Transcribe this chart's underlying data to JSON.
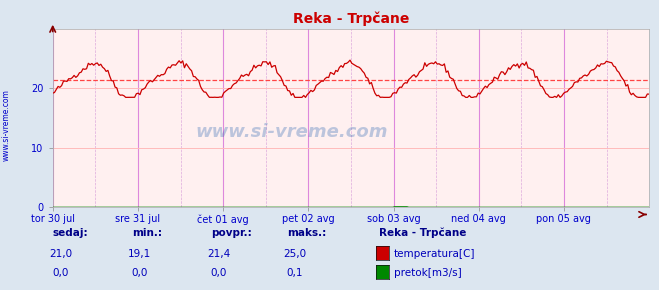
{
  "title": "Reka - Trpčane",
  "fig_bg_color": "#dce6f0",
  "plot_bg_color": "#fff0f0",
  "grid_h_color": "#ffbbbb",
  "grid_v_major_color": "#dd88dd",
  "grid_v_minor_color": "#ddaadd",
  "avg_line_color": "#ff4444",
  "avg_value": 21.4,
  "temp_line_color": "#cc0000",
  "flow_line_color": "#008800",
  "ylim": [
    0,
    30
  ],
  "yticks": [
    0,
    10,
    20
  ],
  "tick_label_color": "#0000cc",
  "watermark": "www.si-vreme.com",
  "side_label": "www.si-vreme.com",
  "day_labels": [
    "tor 30 jul",
    "sre 31 jul",
    "čet 01 avg",
    "pet 02 avg",
    "sob 03 avg",
    "ned 04 avg",
    "pon 05 avg"
  ],
  "n_points": 336,
  "legend_title": "Reka - Trpčane",
  "legend_items": [
    "temperatura[C]",
    "pretok[m3/s]"
  ],
  "legend_colors": [
    "#cc0000",
    "#008800"
  ],
  "stats_headers": [
    "sedaj:",
    "min.:",
    "povpr.:",
    "maks.:"
  ],
  "stats_temp": [
    "21,0",
    "19,1",
    "21,4",
    "25,0"
  ],
  "stats_flow": [
    "0,0",
    "0,0",
    "0,0",
    "0,1"
  ],
  "title_color": "#cc0000",
  "stats_label_color": "#000088",
  "stats_value_color": "#0000bb"
}
